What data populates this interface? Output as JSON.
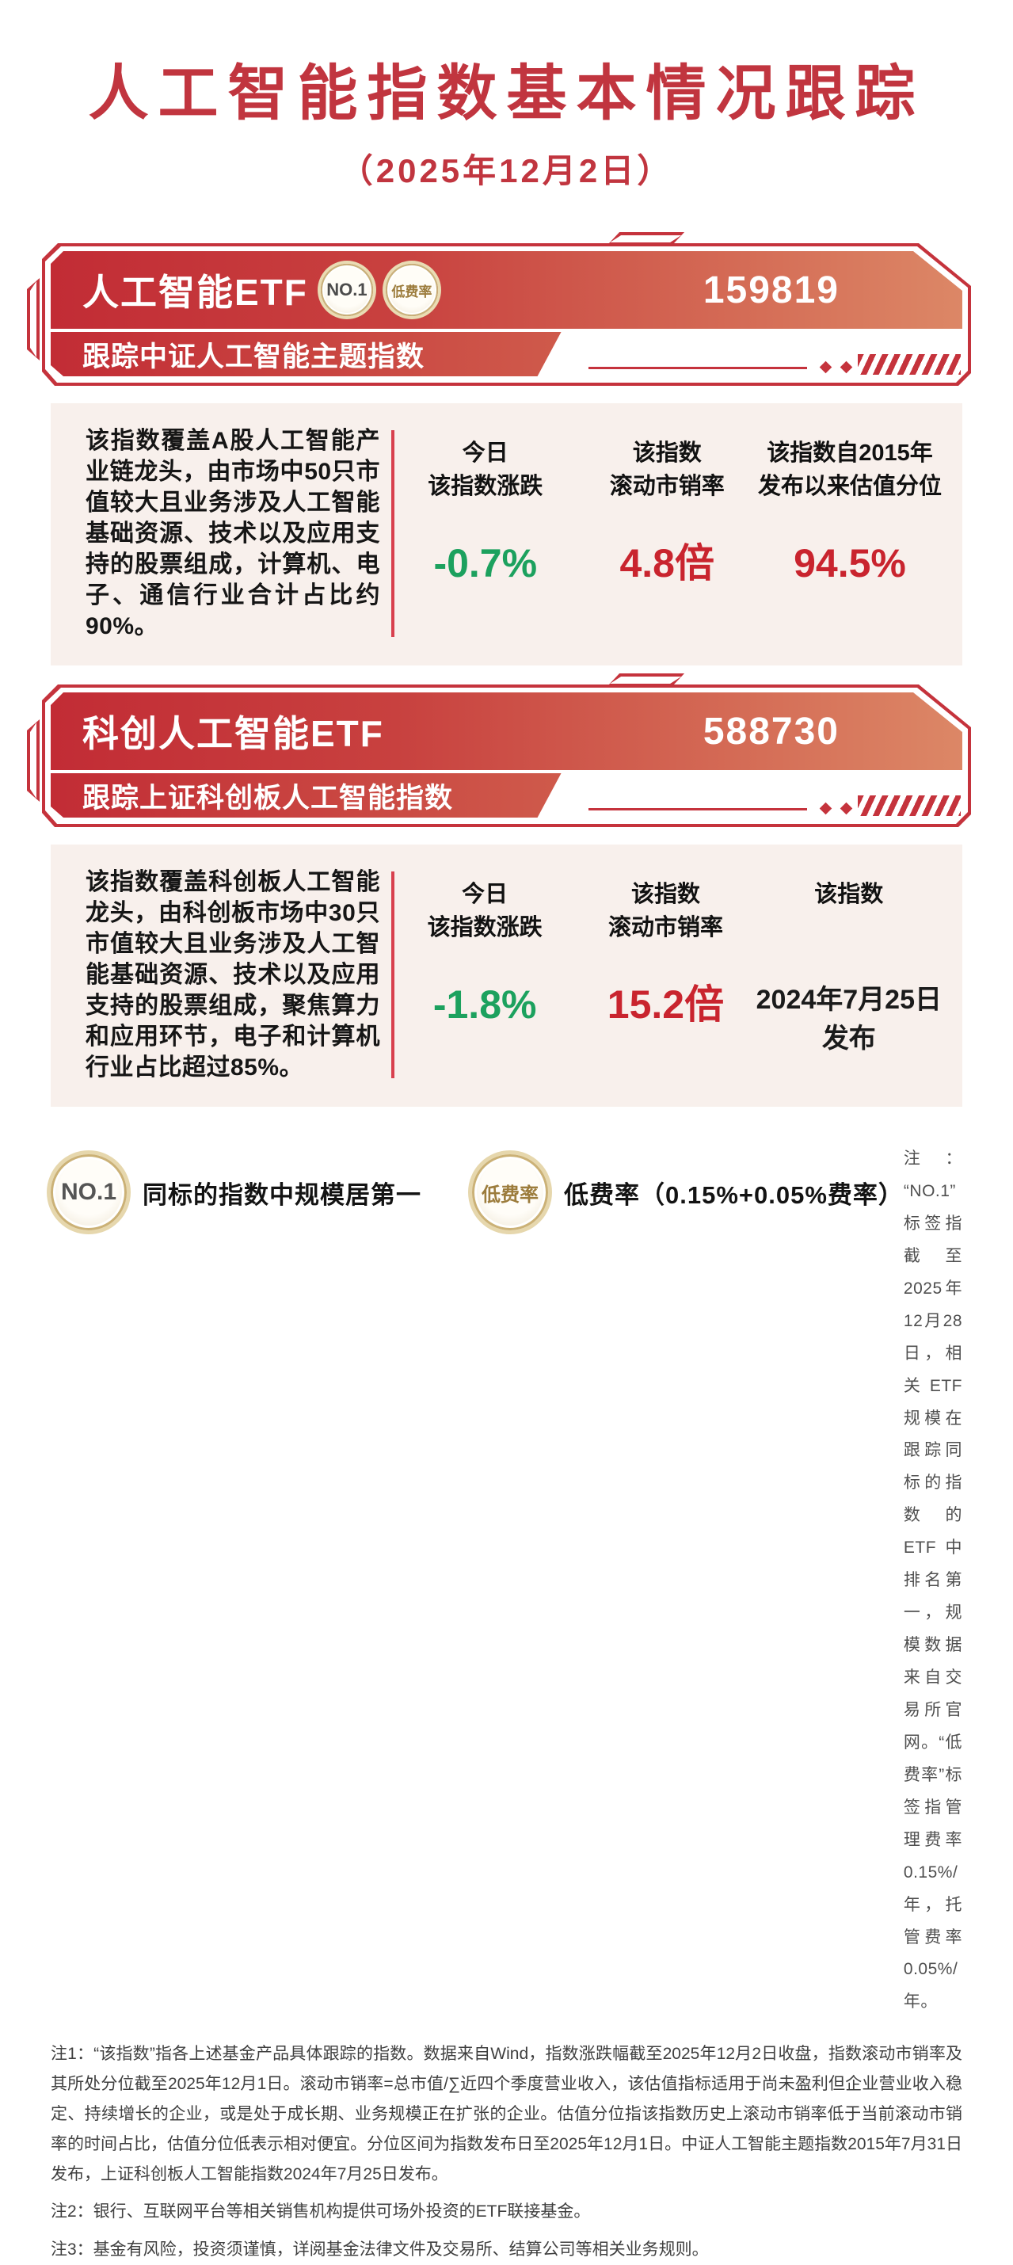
{
  "page": {
    "title": "人工智能指数基本情况跟踪",
    "subtitle": "（2025年12月2日）"
  },
  "colors": {
    "accent_red": "#c5333c",
    "stat_red": "#c9242e",
    "stat_green": "#1ca15e",
    "gold": "#b6985a",
    "box_background": "#f8f0ec"
  },
  "products": [
    {
      "name": "人工智能ETF",
      "code": "159819",
      "badges": {
        "no1": "NO.1",
        "lowfee": "低费率"
      },
      "tracking": "跟踪中证人工智能主题指数",
      "description": "该指数覆盖A股人工智能产业链龙头，由市场中50只市值较大且业务涉及人工智能基础资源、技术以及应用支持的股票组成，计算机、电子、通信行业合计占比约90%。",
      "stats": [
        {
          "label_line1": "今日",
          "label_line2": "该指数涨跌",
          "value": "-0.7%",
          "value_color": "#1ca15e"
        },
        {
          "label_line1": "该指数",
          "label_line2": "滚动市销率",
          "value": "4.8倍",
          "value_color": "#c9242e"
        },
        {
          "label_line1": "该指数自2015年",
          "label_line2": "发布以来估值分位",
          "value": "94.5%",
          "value_color": "#c9242e"
        }
      ]
    },
    {
      "name": "科创人工智能ETF",
      "code": "588730",
      "tracking": "跟踪上证科创板人工智能指数",
      "description": "该指数覆盖科创板人工智能龙头，由科创板市场中30只市值较大且业务涉及人工智能基础资源、技术以及应用支持的股票组成，聚焦算力和应用环节，电子和计算机行业占比超过85%。",
      "stats": [
        {
          "label_line1": "今日",
          "label_line2": "该指数涨跌",
          "value": "-1.8%",
          "value_color": "#1ca15e"
        },
        {
          "label_line1": "该指数",
          "label_line2": "滚动市销率",
          "value": "15.2倍",
          "value_color": "#c9242e"
        },
        {
          "label_line1": "该指数",
          "value": "2024年7月25日",
          "value2": "发布",
          "value_color": "#1b1b1b"
        }
      ]
    }
  ],
  "legend": {
    "no1_badge_text": "NO.1",
    "no1_label": "同标的指数中规模居第一",
    "lowfee_badge_text": "低费率",
    "lowfee_label": "低费率（0.15%+0.05%费率）",
    "note": "注：“NO.1”标签指截至2025年12月28日，相关ETF规模在跟踪同标的指数的ETF中排名第一，规模数据来自交易所官网。“低费率”标签指管理费率0.15%/年，托管费率0.05%/年。"
  },
  "footnotes": [
    "注1：“该指数”指各上述基金产品具体跟踪的指数。数据来自Wind，指数涨跌幅截至2025年12月2日收盘，指数滚动市销率及其所处分位截至2025年12月1日。滚动市销率=总市值/∑近四个季度营业收入，该估值指标适用于尚未盈利但企业营业收入稳定、持续增长的企业，或是处于成长期、业务规模正在扩张的企业。估值分位指该指数历史上滚动市销率低于当前滚动市销率的时间占比，估值分位低表示相对便宜。分位区间为指数发布日至2025年12月1日。中证人工智能主题指数2015年7月31日发布，上证科创板人工智能指数2024年7月25日发布。",
    "注2：银行、互联网平台等相关销售机构提供可场外投资的ETF联接基金。",
    "注3：基金有风险，投资须谨慎，详阅基金法律文件及交易所、结算公司等相关业务规则。"
  ]
}
